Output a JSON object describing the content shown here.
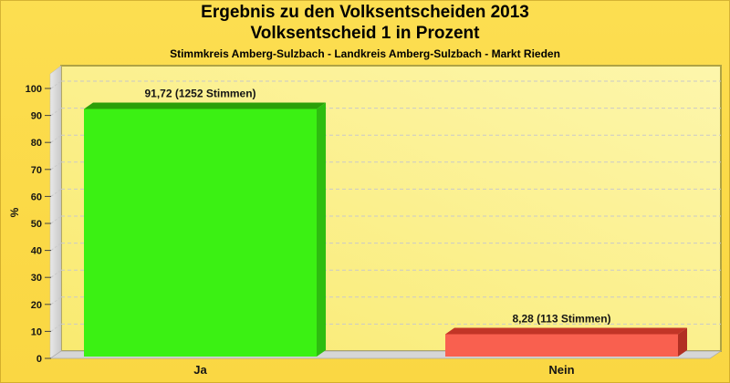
{
  "header": {
    "title_line1": "Ergebnis zu den Volksentscheiden 2013",
    "title_line2": "Volksentscheid 1 in Prozent",
    "subtitle": "Stimmkreis Amberg-Sulzbach - Landkreis Amberg-Sulzbach - Markt Rieden"
  },
  "chart_data": {
    "type": "bar",
    "style": "3d",
    "title": "Ergebnis zu den Volksentscheiden 2013 - Volksentscheid 1 in Prozent",
    "subtitle": "Stimmkreis Amberg-Sulzbach - Landkreis Amberg-Sulzbach - Markt Rieden",
    "categories": [
      "Ja",
      "Nein"
    ],
    "values": [
      91.72,
      8.28
    ],
    "votes": [
      1252,
      113
    ],
    "bar_labels": [
      "91,72 (1252 Stimmen)",
      "8,28 (113 Stimmen)"
    ],
    "ylabel": "%",
    "ylim": [
      0,
      100
    ],
    "yticks": [
      0,
      10,
      20,
      30,
      40,
      50,
      60,
      70,
      80,
      90,
      100
    ],
    "grid": true,
    "legend": "none",
    "bar_colors": [
      {
        "front": "#3BF113",
        "top": "#2B9F09",
        "side": "#2EBD10"
      },
      {
        "front": "#F9604F",
        "top": "#C23527",
        "side": "#B23023"
      }
    ],
    "colors": {
      "background": "#FBDA46",
      "plot_gradient_from": "#F9EA70",
      "plot_gradient_to": "#FDF6AC",
      "plot_border": "#AFA344",
      "wall_light": "#E8E8E8",
      "wall_dark": "#C9C9C9",
      "floor": "#D6D6D6",
      "grid_line": "#C9C9C9",
      "text": "#141414"
    }
  }
}
